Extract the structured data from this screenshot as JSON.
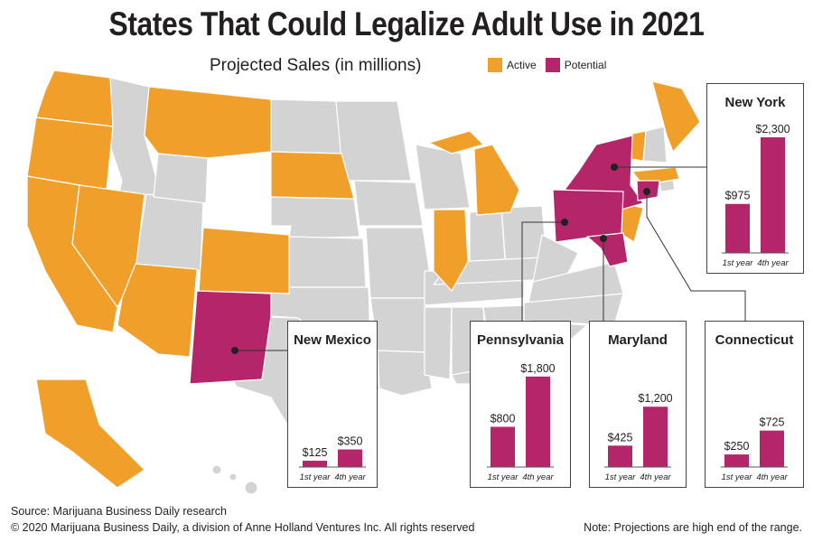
{
  "title": "States That Could Legalize Adult Use in 2021",
  "subtitle": "Projected Sales (in millions)",
  "legend": [
    {
      "label": "Active",
      "color": "#f0a02a"
    },
    {
      "label": "Potential",
      "color": "#b5256a"
    }
  ],
  "colors": {
    "active": "#f0a02a",
    "potential": "#b5256a",
    "other": "#d3d3d3",
    "border": "#ffffff"
  },
  "chart_data": {
    "type": "bar",
    "unit": "millions",
    "categories": [
      "1st year",
      "4th year"
    ],
    "series": [
      {
        "name": "New York",
        "values": [
          975,
          2300
        ],
        "labels": [
          "$975",
          "$2,300"
        ]
      },
      {
        "name": "New Mexico",
        "values": [
          125,
          350
        ],
        "labels": [
          "$125",
          "$350"
        ]
      },
      {
        "name": "Pennsylvania",
        "values": [
          800,
          1800
        ],
        "labels": [
          "$800",
          "$1,800"
        ]
      },
      {
        "name": "Maryland",
        "values": [
          425,
          1200
        ],
        "labels": [
          "$425",
          "$1,200"
        ]
      },
      {
        "name": "Connecticut",
        "values": [
          250,
          725
        ],
        "labels": [
          "$250",
          "$725"
        ]
      }
    ]
  },
  "footer": {
    "source": "Source: Marijuana Business Daily research",
    "copyright": "© 2020 Marijuana Business Daily, a division of Anne Holland Ventures Inc. All rights reserved",
    "note": "Note: Projections are high end of the range."
  }
}
